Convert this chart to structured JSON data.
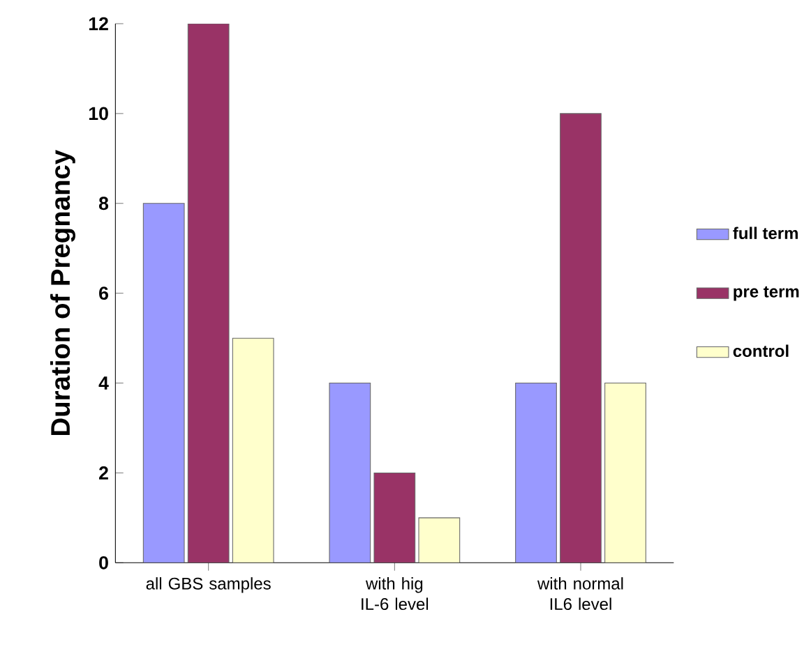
{
  "chart_data": {
    "type": "bar",
    "ylabel": "Duration of Pregnancy",
    "categories": [
      "all GBS samples",
      "with hig IL-6 level",
      "with normal IL6 level"
    ],
    "series": [
      {
        "name": "full term",
        "color": "#9999ff",
        "values": [
          8,
          4,
          4
        ]
      },
      {
        "name": "pre term",
        "color": "#993366",
        "values": [
          12,
          2,
          10
        ]
      },
      {
        "name": "control",
        "color": "#ffffcc",
        "values": [
          5,
          1,
          4
        ]
      }
    ],
    "ylim": [
      0,
      12
    ],
    "yticks": [
      0,
      2,
      4,
      6,
      8,
      10,
      12
    ],
    "legend": "right"
  }
}
